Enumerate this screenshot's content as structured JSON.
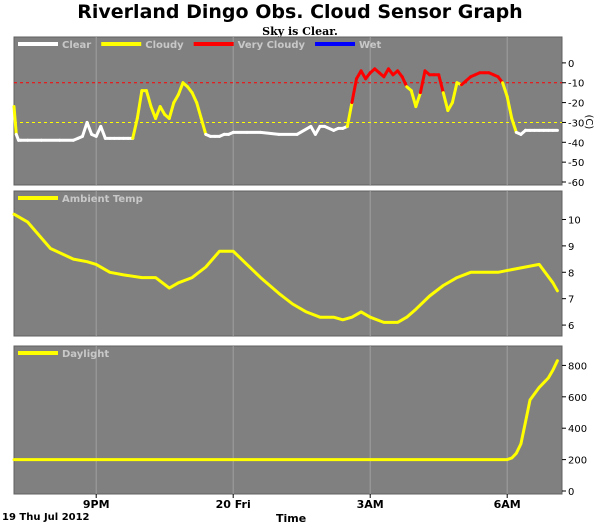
{
  "title": "Riverland Dingo Obs. Cloud Sensor Graph",
  "subtitle": "Sky is Clear.",
  "date_label": "19 Thu Jul 2012",
  "x_axis_label": "Time",
  "colors": {
    "background": "#ffffff",
    "panel": "#808080",
    "clear": "#ffffff",
    "cloudy": "#ffff00",
    "very_cloudy": "#ff0000",
    "wet": "#0000ff",
    "grid": "#a0a0a0"
  },
  "chart_data": [
    {
      "type": "line",
      "panel": "sky",
      "xlim": [
        19.2,
        31.2
      ],
      "ylim": [
        -60,
        8
      ],
      "yticks": [
        0,
        -10,
        -20,
        -30,
        -40,
        -50,
        -60
      ],
      "ylabel": "(C)",
      "reference_lines": [
        {
          "y": -10,
          "color": "#ff0000"
        },
        {
          "y": -30,
          "color": "#ffff00"
        }
      ],
      "thresholds": {
        "cloudy_above": -30,
        "very_cloudy_above": -10
      },
      "legend": [
        "Clear",
        "Cloudy",
        "Very Cloudy",
        "Wet"
      ],
      "x": [
        19.2,
        19.25,
        19.3,
        19.35,
        19.5,
        19.8,
        20.2,
        20.5,
        20.6,
        20.7,
        20.8,
        20.9,
        21.0,
        21.1,
        21.2,
        21.3,
        21.4,
        21.5,
        21.6,
        21.7,
        21.8,
        21.9,
        22.0,
        22.1,
        22.2,
        22.3,
        22.4,
        22.5,
        22.6,
        22.7,
        22.8,
        22.9,
        23.0,
        23.1,
        23.2,
        23.3,
        23.4,
        23.5,
        23.6,
        23.7,
        23.8,
        23.9,
        24.0,
        24.3,
        24.6,
        25.0,
        25.4,
        25.7,
        25.8,
        25.9,
        26.0,
        26.2,
        26.3,
        26.4,
        26.5,
        26.6,
        26.7,
        26.8,
        26.9,
        27.0,
        27.1,
        27.2,
        27.3,
        27.4,
        27.5,
        27.6,
        27.7,
        27.8,
        27.9,
        28.0,
        28.1,
        28.2,
        28.3,
        28.4,
        28.5,
        28.6,
        28.7,
        28.8,
        28.9,
        29.0,
        29.1,
        29.2,
        29.3,
        29.4,
        29.5,
        29.6,
        29.7,
        29.8,
        29.9,
        30.0,
        30.1,
        30.2,
        30.3,
        30.4,
        30.5,
        30.6,
        30.7,
        30.8,
        30.9,
        31.0,
        31.1
      ],
      "values": [
        -22,
        -36,
        -39,
        -39,
        -39,
        -39,
        -39,
        -39,
        -38,
        -37,
        -30,
        -36,
        -37,
        -32,
        -38,
        -38,
        -38,
        -38,
        -38,
        -38,
        -38,
        -28,
        -14,
        -14,
        -22,
        -28,
        -22,
        -26,
        -28,
        -20,
        -16,
        -10,
        -12,
        -15,
        -20,
        -28,
        -36,
        -37,
        -37,
        -37,
        -36,
        -36,
        -35,
        -35,
        -35,
        -36,
        -36,
        -32,
        -36,
        -32,
        -32,
        -34,
        -33,
        -33,
        -32,
        -20,
        -8,
        -4,
        -8,
        -5,
        -3,
        -5,
        -7,
        -3,
        -6,
        -4,
        -7,
        -12,
        -14,
        -22,
        -15,
        -4,
        -6,
        -6,
        -6,
        -15,
        -24,
        -20,
        -10,
        -11,
        -9,
        -7,
        -6,
        -5,
        -5,
        -5,
        -6,
        -7,
        -10,
        -17,
        -28,
        -35,
        -36,
        -34,
        -34,
        -34,
        -34,
        -34,
        -34,
        -34,
        -34
      ]
    },
    {
      "type": "line",
      "panel": "ambient",
      "xlim": [
        19.2,
        31.2
      ],
      "ylim": [
        5.7,
        10.7
      ],
      "yticks": [
        10,
        9,
        8,
        7,
        6
      ],
      "legend": [
        "Ambient Temp"
      ],
      "x": [
        19.2,
        19.5,
        19.8,
        20.0,
        20.5,
        20.8,
        21.0,
        21.3,
        21.6,
        22.0,
        22.3,
        22.6,
        22.8,
        23.1,
        23.4,
        23.7,
        24.0,
        24.3,
        24.6,
        25.0,
        25.3,
        25.6,
        25.9,
        26.2,
        26.4,
        26.6,
        26.8,
        27.0,
        27.3,
        27.6,
        27.8,
        28.0,
        28.3,
        28.6,
        28.9,
        29.2,
        29.5,
        29.8,
        30.1,
        30.4,
        30.7,
        31.0,
        31.1
      ],
      "values": [
        10.2,
        9.9,
        9.3,
        8.9,
        8.5,
        8.4,
        8.3,
        8.0,
        7.9,
        7.8,
        7.8,
        7.4,
        7.6,
        7.8,
        8.2,
        8.8,
        8.8,
        8.3,
        7.8,
        7.2,
        6.8,
        6.5,
        6.3,
        6.3,
        6.2,
        6.3,
        6.5,
        6.3,
        6.1,
        6.1,
        6.3,
        6.6,
        7.1,
        7.5,
        7.8,
        8.0,
        8.0,
        8.0,
        8.1,
        8.2,
        8.3,
        7.6,
        7.3
      ]
    },
    {
      "type": "line",
      "panel": "daylight",
      "xlim": [
        19.2,
        31.2
      ],
      "ylim": [
        0,
        860
      ],
      "yticks": [
        800,
        600,
        400,
        200,
        0
      ],
      "legend": [
        "Daylight"
      ],
      "x": [
        19.2,
        20.0,
        21.0,
        22.0,
        23.0,
        24.0,
        25.0,
        26.0,
        27.0,
        28.0,
        29.0,
        29.8,
        30.0,
        30.1,
        30.2,
        30.3,
        30.4,
        30.5,
        30.7,
        30.9,
        31.0,
        31.1
      ],
      "values": [
        200,
        200,
        200,
        200,
        200,
        200,
        200,
        200,
        200,
        200,
        200,
        200,
        200,
        210,
        240,
        300,
        440,
        580,
        660,
        720,
        770,
        830
      ]
    }
  ],
  "x_ticks": [
    {
      "x": 21,
      "label": "9PM"
    },
    {
      "x": 24,
      "label": "20 Fri"
    },
    {
      "x": 27,
      "label": "3AM"
    },
    {
      "x": 30,
      "label": "6AM"
    }
  ]
}
